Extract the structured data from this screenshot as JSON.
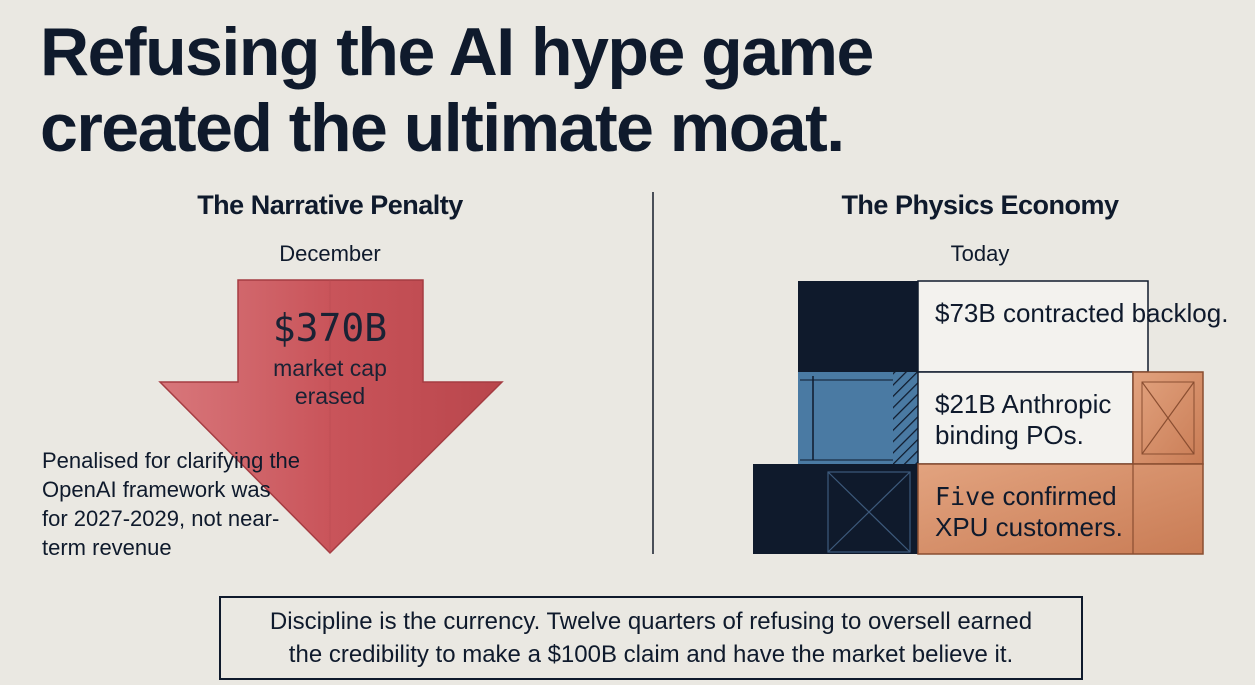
{
  "title": {
    "line1": "Refusing the AI hype game",
    "line2": "created the ultimate moat."
  },
  "left": {
    "heading": "The Narrative Penalty",
    "period": "December",
    "amount": "$370B",
    "caption": "market cap erased",
    "note": "Penalised for clarifying the OpenAI framework was for 2027-2029, not near-term revenue"
  },
  "right": {
    "heading": "The Physics Economy",
    "period": "Today",
    "stat1": {
      "amount": "$73B",
      "text": "contracted backlog."
    },
    "stat2": {
      "amount": "$21B",
      "text": "Anthropic binding POs."
    },
    "stat3": {
      "amount": "Five",
      "text": "confirmed XPU customers."
    }
  },
  "footer": {
    "line1": "Discipline is the currency. Twelve quarters of refusing to oversell earned",
    "line2": "the credibility to make a $100B claim and have the market believe it."
  },
  "colors": {
    "navy": "#0f1a2c",
    "arrow_red": "#c9545a",
    "steel_blue": "#4a7aa3",
    "copper": "#d08a63",
    "background": "#eae8e2"
  }
}
